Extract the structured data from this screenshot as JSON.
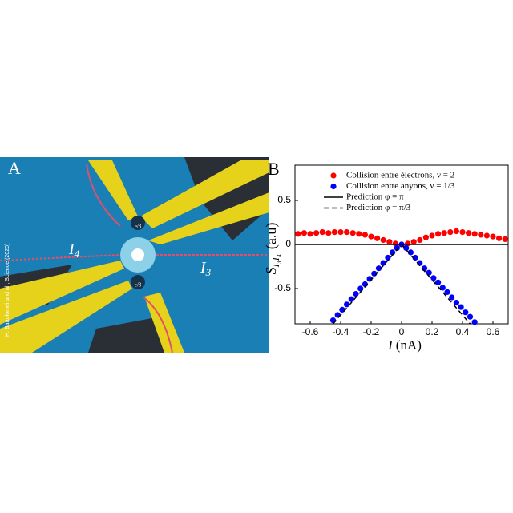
{
  "panel_a": {
    "label": "A",
    "current_left": {
      "symbol": "I",
      "sub": "4"
    },
    "current_right": {
      "symbol": "I",
      "sub": "3"
    },
    "charge_top": "e/3",
    "charge_bottom": "e/3",
    "credit": "H. Bartolomei and al., Science (2020)"
  },
  "chart_data": {
    "type": "scatter",
    "panel_label": "B",
    "x_label": {
      "symbol": "I",
      "unit": "(nA)"
    },
    "y_label": {
      "symbol": "S",
      "sub": "I₃I₄",
      "unit": "(a.u)"
    },
    "xlim": [
      -0.7,
      0.7
    ],
    "xticks": [
      -0.6,
      -0.4,
      -0.2,
      0,
      0.2,
      0.4,
      0.6
    ],
    "ylim": [
      -0.9,
      0.9
    ],
    "yticks": [
      -0.5,
      0,
      0.5
    ],
    "legend": "top",
    "series": [
      {
        "name": "Collision entre électrons, ν = 2",
        "color": "#ff0000",
        "marker": "dot",
        "x": [
          -0.68,
          -0.64,
          -0.6,
          -0.56,
          -0.52,
          -0.48,
          -0.44,
          -0.4,
          -0.36,
          -0.32,
          -0.28,
          -0.24,
          -0.2,
          -0.16,
          -0.12,
          -0.08,
          -0.04,
          0,
          0.04,
          0.08,
          0.12,
          0.16,
          0.2,
          0.24,
          0.28,
          0.32,
          0.36,
          0.4,
          0.44,
          0.48,
          0.52,
          0.56,
          0.6,
          0.64,
          0.68
        ],
        "values": [
          0.12,
          0.13,
          0.12,
          0.13,
          0.14,
          0.13,
          0.14,
          0.14,
          0.14,
          0.13,
          0.12,
          0.11,
          0.09,
          0.07,
          0.05,
          0.03,
          0.01,
          0,
          0.01,
          0.03,
          0.05,
          0.08,
          0.1,
          0.12,
          0.13,
          0.14,
          0.15,
          0.14,
          0.13,
          0.12,
          0.11,
          0.1,
          0.09,
          0.07,
          0.06
        ]
      },
      {
        "name": "Collision entre anyons, ν = 1/3",
        "color": "#0000ff",
        "marker": "dot",
        "x": [
          -0.45,
          -0.42,
          -0.39,
          -0.36,
          -0.33,
          -0.3,
          -0.27,
          -0.24,
          -0.21,
          -0.18,
          -0.15,
          -0.12,
          -0.09,
          -0.06,
          -0.03,
          0,
          0.03,
          0.06,
          0.09,
          0.12,
          0.15,
          0.18,
          0.21,
          0.24,
          0.27,
          0.3,
          0.33,
          0.36,
          0.39,
          0.42,
          0.45,
          0.48
        ],
        "values": [
          -0.86,
          -0.8,
          -0.74,
          -0.68,
          -0.62,
          -0.56,
          -0.5,
          -0.45,
          -0.39,
          -0.33,
          -0.27,
          -0.21,
          -0.15,
          -0.09,
          -0.04,
          0,
          -0.04,
          -0.09,
          -0.15,
          -0.21,
          -0.27,
          -0.32,
          -0.38,
          -0.43,
          -0.49,
          -0.54,
          -0.6,
          -0.66,
          -0.71,
          -0.77,
          -0.82,
          -0.88
        ]
      },
      {
        "name": "Prediction φ = π",
        "color": "#000000",
        "marker": "line",
        "dash": false,
        "x": [
          -0.7,
          0.7
        ],
        "values": [
          0,
          0
        ]
      },
      {
        "name": "Prediction φ = π/3",
        "color": "#000000",
        "marker": "line",
        "dash": true,
        "x": [
          -0.45,
          0,
          0.45
        ],
        "values": [
          -0.9,
          0,
          -0.9
        ]
      }
    ]
  }
}
